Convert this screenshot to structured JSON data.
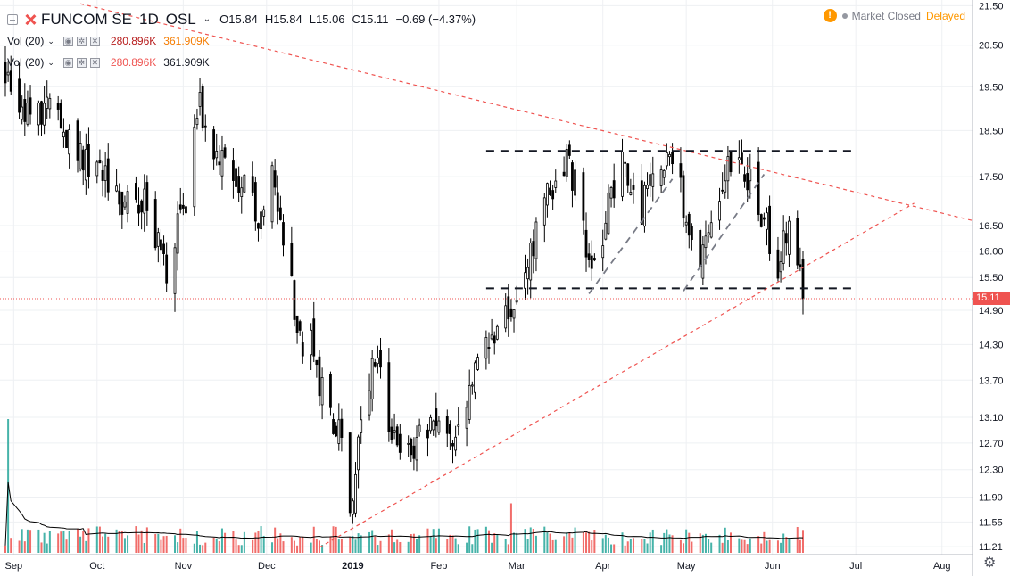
{
  "header": {
    "symbol": "FUNCOM SE",
    "interval": "1D",
    "exchange": "OSL",
    "ohlc": {
      "o_label": "O",
      "o": "15.84",
      "h_label": "H",
      "h": "15.84",
      "l_label": "L",
      "l": "15.06",
      "c_label": "C",
      "c": "15.11",
      "change": "−0.69 (−4.37%)"
    }
  },
  "volume_indicators": [
    {
      "name": "Vol (20)",
      "value1": "280.896K",
      "value2": "361.909K",
      "value1_color": "#b71c1c",
      "value2_color": "#f57c00"
    },
    {
      "name": "Vol (20)",
      "value1": "280.896K",
      "value2": "361.909K",
      "value1_color": "#ef5350",
      "value2_color": "#131722"
    }
  ],
  "status": {
    "warning_icon": "warning-icon",
    "warning_glyph": "!",
    "market": "Market Closed",
    "delayed": "Delayed",
    "warning_color": "#ff9800",
    "dot_color": "#9598a1",
    "delayed_color": "#ff9800"
  },
  "colors": {
    "up": "#26a69a",
    "down": "#ef5350",
    "candle": "#000000",
    "trendline": "#ef5350",
    "level_line": "#131722",
    "channel_line": "#787b86",
    "grid": "#eef0f3",
    "axis_text": "#131722",
    "last_price_bg": "#ef5350",
    "vol_ma": "#000000"
  },
  "last_price_label": "15.11",
  "settings_icon": "gear-icon",
  "chart_data": {
    "type": "candlestick",
    "y_ticks": [
      "21.50",
      "20.50",
      "19.50",
      "18.50",
      "17.50",
      "16.50",
      "16.00",
      "15.50",
      "14.90",
      "14.30",
      "13.70",
      "13.10",
      "12.70",
      "12.30",
      "11.90",
      "11.55",
      "11.21"
    ],
    "y_tick_values": [
      21.5,
      20.5,
      19.5,
      18.5,
      17.5,
      16.5,
      16.0,
      15.5,
      14.9,
      14.3,
      13.7,
      13.1,
      12.7,
      12.3,
      11.9,
      11.55,
      11.21
    ],
    "y_scale": "log",
    "ylim": [
      11.2,
      21.6
    ],
    "x_ticks": [
      "Sep",
      "Oct",
      "Nov",
      "Dec",
      "2019",
      "Feb",
      "Mar",
      "Apr",
      "May",
      "Jun",
      "Jul",
      "Aug"
    ],
    "x_tick_dates": [
      "2018-09-01",
      "2018-10-01",
      "2018-11-01",
      "2018-12-01",
      "2019-01-01",
      "2019-02-01",
      "2019-03-01",
      "2019-04-01",
      "2019-05-01",
      "2019-06-01",
      "2019-07-01",
      "2019-08-01"
    ],
    "x_range": [
      "2018-08-29",
      "2019-08-12"
    ],
    "last_price": 15.11,
    "series_anchors": [
      [
        "2018-08-29",
        19.9
      ],
      [
        "2018-09-05",
        18.7
      ],
      [
        "2018-09-12",
        19.0
      ],
      [
        "2018-09-20",
        18.3
      ],
      [
        "2018-10-01",
        17.7
      ],
      [
        "2018-10-10",
        17.1
      ],
      [
        "2018-10-18",
        17.0
      ],
      [
        "2018-10-26",
        15.7
      ],
      [
        "2018-11-02",
        17.0
      ],
      [
        "2018-11-07",
        19.1
      ],
      [
        "2018-11-14",
        17.9
      ],
      [
        "2018-11-23",
        17.4
      ],
      [
        "2018-11-28",
        16.7
      ],
      [
        "2018-12-03",
        17.9
      ],
      [
        "2018-12-06",
        16.6
      ],
      [
        "2018-12-12",
        14.5
      ],
      [
        "2018-12-18",
        14.2
      ],
      [
        "2018-12-20",
        13.7
      ],
      [
        "2018-12-27",
        12.9
      ],
      [
        "2018-12-31",
        11.7
      ],
      [
        "2019-01-04",
        12.8
      ],
      [
        "2019-01-10",
        14.3
      ],
      [
        "2019-01-14",
        12.9
      ],
      [
        "2019-01-22",
        12.6
      ],
      [
        "2019-01-28",
        12.9
      ],
      [
        "2019-02-04",
        12.9
      ],
      [
        "2019-02-08",
        12.8
      ],
      [
        "2019-02-14",
        13.9
      ],
      [
        "2019-02-22",
        14.6
      ],
      [
        "2019-02-27",
        14.9
      ],
      [
        "2019-03-06",
        16.0
      ],
      [
        "2019-03-11",
        16.9
      ],
      [
        "2019-03-18",
        17.9
      ],
      [
        "2019-03-22",
        17.3
      ],
      [
        "2019-03-27",
        15.7
      ],
      [
        "2019-04-02",
        16.6
      ],
      [
        "2019-04-08",
        17.9
      ],
      [
        "2019-04-15",
        16.9
      ],
      [
        "2019-04-23",
        17.9
      ],
      [
        "2019-04-26",
        18.1
      ],
      [
        "2019-04-30",
        16.9
      ],
      [
        "2019-05-06",
        15.9
      ],
      [
        "2019-05-10",
        16.6
      ],
      [
        "2019-05-16",
        17.7
      ],
      [
        "2019-05-21",
        18.0
      ],
      [
        "2019-05-24",
        17.4
      ],
      [
        "2019-05-29",
        16.7
      ],
      [
        "2019-06-03",
        15.6
      ],
      [
        "2019-06-07",
        16.5
      ],
      [
        "2019-06-12",
        15.11
      ]
    ],
    "volume_spikes": [
      [
        "2018-08-30",
        100
      ],
      [
        "2019-02-27",
        37
      ],
      [
        "2019-02-28",
        15
      ]
    ],
    "annotations": {
      "resistance_level": 18.05,
      "support_level": 15.3,
      "level_range": [
        "2019-02-18",
        "2019-07-01"
      ],
      "descending_trendline": [
        [
          "2018-09-25",
          21.55
        ],
        [
          "2019-08-12",
          16.6
        ]
      ],
      "ascending_trendline": [
        [
          "2018-12-20",
          11.2
        ],
        [
          "2019-07-22",
          16.95
        ]
      ],
      "channel_lines": [
        [
          [
            "2019-03-27",
            15.2
          ],
          [
            "2019-04-26",
            17.45
          ]
        ],
        [
          [
            "2019-04-30",
            15.25
          ],
          [
            "2019-05-29",
            17.55
          ]
        ]
      ]
    }
  }
}
